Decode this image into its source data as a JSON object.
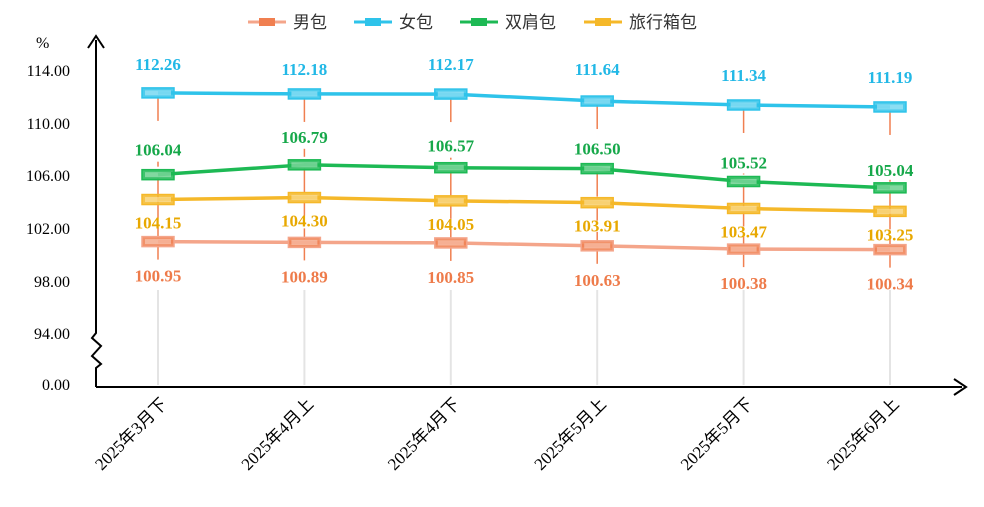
{
  "chart_data": {
    "type": "line",
    "unit": "%",
    "categories": [
      "2025年3月下",
      "2025年4月上",
      "2025年4月下",
      "2025年5月上",
      "2025年5月下",
      "2025年6月上"
    ],
    "y_ticks": [
      "114.00",
      "110.00",
      "106.00",
      "102.00",
      "98.00",
      "94.00",
      "0.00"
    ],
    "ylim": [
      94,
      114
    ],
    "axis_break": true,
    "legend_position": "top",
    "series": [
      {
        "name": "男包",
        "color": "#F4A58A",
        "marker_color": "#F07F50",
        "label_color": "#EE7B4A",
        "values": [
          100.95,
          100.89,
          100.85,
          100.63,
          100.38,
          100.34
        ],
        "labels": [
          "100.95",
          "100.89",
          "100.85",
          "100.63",
          "100.38",
          "100.34"
        ]
      },
      {
        "name": "女包",
        "color": "#2EC3EA",
        "marker_color": "#2EC3EA",
        "label_color": "#22B8E6",
        "values": [
          112.26,
          112.18,
          112.17,
          111.64,
          111.34,
          111.19
        ],
        "labels": [
          "112.26",
          "112.18",
          "112.17",
          "111.64",
          "111.34",
          "111.19"
        ]
      },
      {
        "name": "双肩包",
        "color": "#1DB954",
        "marker_color": "#1DB954",
        "label_color": "#16A84A",
        "values": [
          106.04,
          106.79,
          106.57,
          106.5,
          105.52,
          105.04
        ],
        "labels": [
          "106.04",
          "106.79",
          "106.57",
          "106.50",
          "105.52",
          "105.04"
        ]
      },
      {
        "name": "旅行箱包",
        "color": "#F5B829",
        "marker_color": "#F5B829",
        "label_color": "#E8A800",
        "values": [
          104.15,
          104.3,
          104.05,
          103.91,
          103.47,
          103.25
        ],
        "labels": [
          "104.15",
          "104.30",
          "104.05",
          "103.91",
          "103.47",
          "103.25"
        ]
      }
    ]
  }
}
